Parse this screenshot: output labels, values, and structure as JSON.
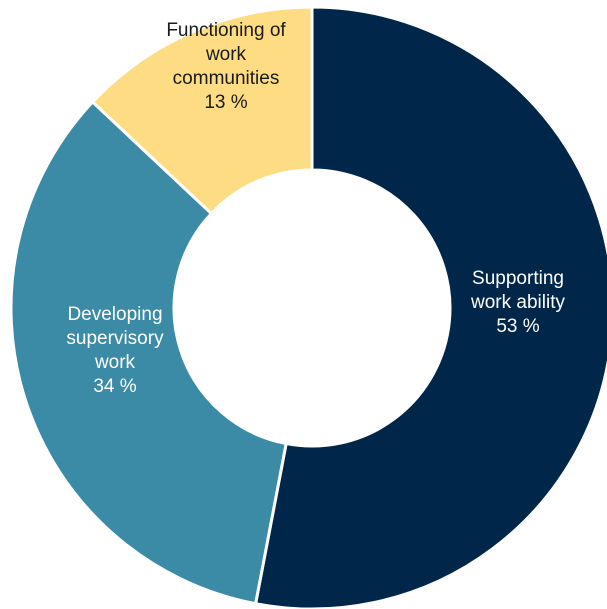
{
  "chart_data": {
    "type": "pie",
    "donut": true,
    "slices": [
      {
        "label_lines": [
          "Supporting",
          "work ability"
        ],
        "value": 53,
        "value_label": "53 %",
        "color": "#00274a",
        "text_color": "#ffffff"
      },
      {
        "label_lines": [
          "Developing",
          "supervisory",
          "work"
        ],
        "value": 34,
        "value_label": "34 %",
        "color": "#3b8aa6",
        "text_color": "#ffffff"
      },
      {
        "label_lines": [
          "Functioning of",
          "work",
          "communities"
        ],
        "value": 13,
        "value_label": "13 %",
        "color": "#fddc84",
        "text_color": "#1a1a1a"
      }
    ],
    "legend": "none",
    "start_angle": "top, clockwise"
  }
}
